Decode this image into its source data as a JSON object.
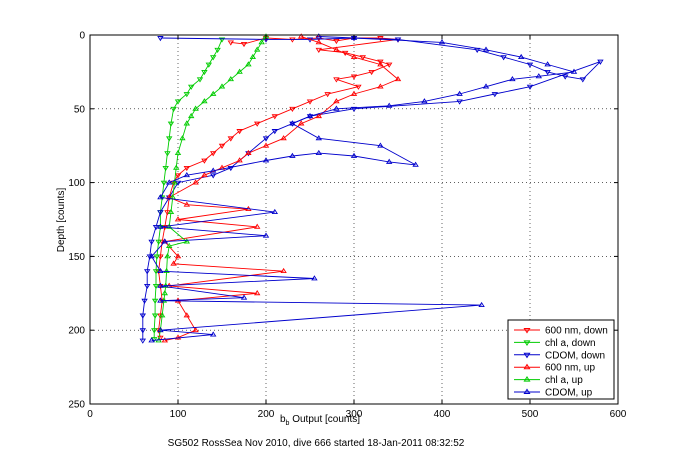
{
  "chart_data": {
    "type": "scatter",
    "title": "",
    "xlabel": {
      "main": "b",
      "sub": "b",
      "rest": " Output [counts]"
    },
    "ylabel": "Depth [counts]",
    "caption": "SG502 RossSea Nov 2010, dive 666 started 18-Jan-2011 08:32:52",
    "xlim": [
      0,
      600
    ],
    "ylim": [
      0,
      250
    ],
    "y_reversed": true,
    "grid": true,
    "legend_position": "bottom-right",
    "xticks": [
      "0",
      "100",
      "200",
      "300",
      "400",
      "500",
      "600"
    ],
    "yticks": [
      "0",
      "50",
      "100",
      "150",
      "200",
      "250"
    ],
    "series": [
      {
        "name": "600 nm, down",
        "color": "#ff0000",
        "marker": "triangle-down",
        "points": [
          [
            160,
            5
          ],
          [
            175,
            6
          ],
          [
            200,
            2
          ],
          [
            230,
            3
          ],
          [
            260,
            2
          ],
          [
            280,
            4
          ],
          [
            300,
            2
          ],
          [
            330,
            2
          ],
          [
            350,
            3
          ],
          [
            260,
            10
          ],
          [
            290,
            12
          ],
          [
            310,
            15
          ],
          [
            330,
            18
          ],
          [
            340,
            20
          ],
          [
            320,
            25
          ],
          [
            300,
            28
          ],
          [
            280,
            30
          ],
          [
            305,
            35
          ],
          [
            270,
            40
          ],
          [
            250,
            45
          ],
          [
            230,
            50
          ],
          [
            210,
            55
          ],
          [
            190,
            60
          ],
          [
            170,
            65
          ],
          [
            160,
            70
          ],
          [
            150,
            75
          ],
          [
            140,
            80
          ],
          [
            130,
            85
          ],
          [
            110,
            90
          ],
          [
            100,
            95
          ],
          [
            95,
            100
          ],
          [
            90,
            110
          ],
          [
            88,
            120
          ],
          [
            85,
            130
          ],
          [
            82,
            140
          ],
          [
            80,
            150
          ],
          [
            78,
            160
          ],
          [
            80,
            170
          ],
          [
            82,
            180
          ],
          [
            80,
            190
          ],
          [
            78,
            200
          ],
          [
            80,
            205
          ]
        ]
      },
      {
        "name": "chl a, down",
        "color": "#00cc00",
        "marker": "triangle-down",
        "points": [
          [
            150,
            3
          ],
          [
            145,
            10
          ],
          [
            140,
            15
          ],
          [
            135,
            20
          ],
          [
            130,
            25
          ],
          [
            125,
            30
          ],
          [
            115,
            35
          ],
          [
            110,
            40
          ],
          [
            100,
            45
          ],
          [
            95,
            50
          ],
          [
            92,
            60
          ],
          [
            90,
            70
          ],
          [
            88,
            80
          ],
          [
            86,
            90
          ],
          [
            84,
            100
          ],
          [
            82,
            110
          ],
          [
            80,
            120
          ],
          [
            80,
            130
          ],
          [
            78,
            140
          ],
          [
            76,
            150
          ],
          [
            75,
            160
          ],
          [
            75,
            170
          ],
          [
            74,
            180
          ],
          [
            74,
            190
          ],
          [
            73,
            200
          ],
          [
            73,
            206
          ]
        ]
      },
      {
        "name": "CDOM, down",
        "color": "#0000cc",
        "marker": "triangle-down",
        "points": [
          [
            80,
            2
          ],
          [
            200,
            3
          ],
          [
            250,
            3
          ],
          [
            300,
            2
          ],
          [
            350,
            3
          ],
          [
            440,
            10
          ],
          [
            470,
            15
          ],
          [
            500,
            20
          ],
          [
            520,
            25
          ],
          [
            540,
            28
          ],
          [
            560,
            30
          ],
          [
            580,
            18
          ],
          [
            500,
            35
          ],
          [
            460,
            40
          ],
          [
            420,
            45
          ],
          [
            300,
            50
          ],
          [
            250,
            55
          ],
          [
            230,
            60
          ],
          [
            210,
            65
          ],
          [
            200,
            70
          ],
          [
            180,
            80
          ],
          [
            160,
            90
          ],
          [
            140,
            95
          ],
          [
            100,
            100
          ],
          [
            90,
            110
          ],
          [
            80,
            120
          ],
          [
            75,
            130
          ],
          [
            70,
            140
          ],
          [
            68,
            150
          ],
          [
            65,
            160
          ],
          [
            65,
            170
          ],
          [
            62,
            180
          ],
          [
            60,
            190
          ],
          [
            60,
            200
          ],
          [
            60,
            207
          ]
        ]
      },
      {
        "name": "600 nm, up",
        "color": "#ff0000",
        "marker": "triangle-up",
        "points": [
          [
            85,
            207
          ],
          [
            100,
            205
          ],
          [
            120,
            200
          ],
          [
            110,
            190
          ],
          [
            100,
            180
          ],
          [
            190,
            175
          ],
          [
            90,
            170
          ],
          [
            220,
            160
          ],
          [
            95,
            155
          ],
          [
            100,
            150
          ],
          [
            85,
            140
          ],
          [
            190,
            130
          ],
          [
            100,
            125
          ],
          [
            180,
            118
          ],
          [
            110,
            115
          ],
          [
            90,
            110
          ],
          [
            120,
            100
          ],
          [
            130,
            95
          ],
          [
            150,
            90
          ],
          [
            170,
            85
          ],
          [
            180,
            80
          ],
          [
            200,
            75
          ],
          [
            220,
            70
          ],
          [
            240,
            60
          ],
          [
            260,
            55
          ],
          [
            280,
            45
          ],
          [
            300,
            40
          ],
          [
            330,
            35
          ],
          [
            350,
            30
          ],
          [
            330,
            20
          ],
          [
            300,
            15
          ],
          [
            280,
            10
          ],
          [
            260,
            5
          ],
          [
            240,
            1
          ]
        ]
      },
      {
        "name": "chl a, up",
        "color": "#00cc00",
        "marker": "triangle-up",
        "points": [
          [
            78,
            207
          ],
          [
            80,
            200
          ],
          [
            82,
            190
          ],
          [
            84,
            180
          ],
          [
            85,
            175
          ],
          [
            86,
            170
          ],
          [
            87,
            160
          ],
          [
            88,
            150
          ],
          [
            90,
            143
          ],
          [
            110,
            140
          ],
          [
            90,
            130
          ],
          [
            92,
            120
          ],
          [
            94,
            110
          ],
          [
            96,
            100
          ],
          [
            98,
            90
          ],
          [
            100,
            80
          ],
          [
            105,
            70
          ],
          [
            110,
            60
          ],
          [
            115,
            55
          ],
          [
            120,
            50
          ],
          [
            130,
            45
          ],
          [
            140,
            40
          ],
          [
            150,
            35
          ],
          [
            160,
            30
          ],
          [
            170,
            25
          ],
          [
            180,
            20
          ],
          [
            185,
            15
          ],
          [
            190,
            10
          ],
          [
            195,
            5
          ],
          [
            200,
            1
          ]
        ]
      },
      {
        "name": "CDOM, up",
        "color": "#0000cc",
        "marker": "triangle-up",
        "points": [
          [
            70,
            207
          ],
          [
            140,
            203
          ],
          [
            80,
            200
          ],
          [
            445,
            183
          ],
          [
            80,
            180
          ],
          [
            175,
            178
          ],
          [
            80,
            170
          ],
          [
            255,
            165
          ],
          [
            80,
            160
          ],
          [
            70,
            150
          ],
          [
            85,
            140
          ],
          [
            200,
            136
          ],
          [
            80,
            130
          ],
          [
            210,
            120
          ],
          [
            80,
            110
          ],
          [
            90,
            100
          ],
          [
            110,
            95
          ],
          [
            140,
            92
          ],
          [
            200,
            85
          ],
          [
            230,
            82
          ],
          [
            260,
            80
          ],
          [
            300,
            82
          ],
          [
            340,
            86
          ],
          [
            370,
            88
          ],
          [
            330,
            75
          ],
          [
            260,
            70
          ],
          [
            230,
            60
          ],
          [
            250,
            55
          ],
          [
            280,
            50
          ],
          [
            340,
            48
          ],
          [
            380,
            45
          ],
          [
            420,
            40
          ],
          [
            450,
            35
          ],
          [
            480,
            30
          ],
          [
            510,
            28
          ],
          [
            550,
            25
          ],
          [
            520,
            20
          ],
          [
            490,
            15
          ],
          [
            450,
            10
          ],
          [
            400,
            5
          ],
          [
            300,
            2
          ],
          [
            260,
            1
          ]
        ]
      }
    ]
  }
}
